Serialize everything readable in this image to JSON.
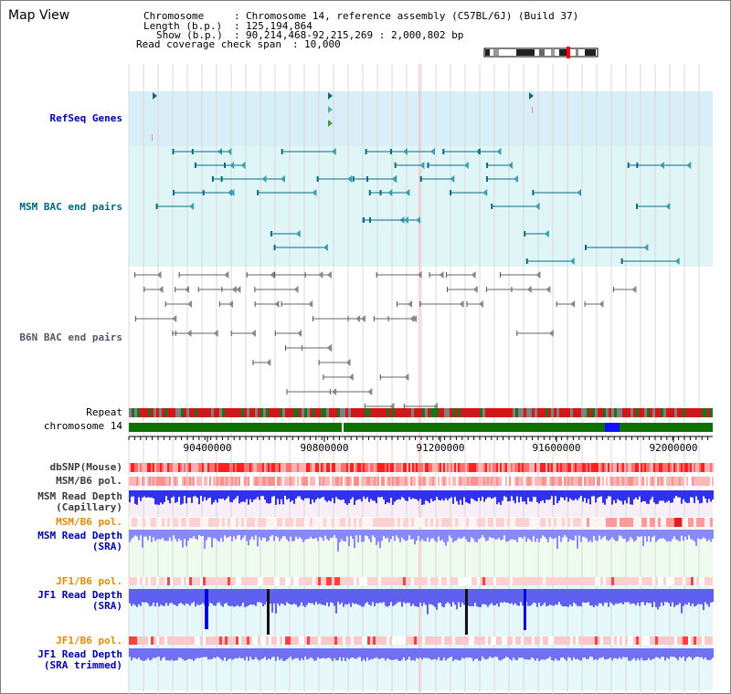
{
  "title": "Map View",
  "header": {
    "chromosome_label": "Chromosome",
    "chromosome_value": "Chromosome 14, reference assembly (C57BL/6J) (Build 37)",
    "length_label": "Length (b.p.)",
    "length_value": "125,194,864",
    "show_label": "Show (b.p.)",
    "show_value": "90,214,468-92,215,269 : 2,000,802 bp",
    "coverage_label": "Read coverage check span",
    "coverage_value": "10,000"
  },
  "tracks": {
    "refseq": "RefSeq Genes",
    "msm_bac": "MSM BAC end pairs",
    "b6n_bac": "B6N BAC end pairs",
    "repeat": "Repeat",
    "chromosome": "chromosome 14",
    "dbsnp": "dbSNP(Mouse)",
    "msm_b6_pol": "MSM/B6 pol.",
    "msm_depth_cap_1": "MSM Read Depth",
    "msm_depth_cap_2": "(Capillary)",
    "msm_b6_pol_2": "MSM/B6 pol.",
    "msm_depth_sra_1": "MSM Read Depth",
    "msm_depth_sra_2": "(SRA)",
    "jf1_b6_pol": "JF1/B6 pol.",
    "jf1_depth_sra_1": "JF1 Read Depth",
    "jf1_depth_sra_2": "(SRA)",
    "jf1_b6_pol_2": "JF1/B6 pol.",
    "jf1_depth_trim_1": "JF1 Read Depth",
    "jf1_depth_trim_2": "(SRA trimmed)"
  },
  "axis": {
    "ticks": [
      {
        "value": 90400000,
        "label": "90400000"
      },
      {
        "value": 90800000,
        "label": "90800000"
      },
      {
        "value": 91200000,
        "label": "91200000"
      },
      {
        "value": 91600000,
        "label": "91600000"
      },
      {
        "value": 92000000,
        "label": "92000000"
      }
    ],
    "range": [
      90214468,
      92215269
    ]
  },
  "colors": {
    "grid": "#d8d8d8",
    "refseq_bg": "#d8eef8",
    "msm_bac_bg": "#e0f6f6",
    "msm_bac_line": "#0a6a88",
    "b6n_line": "#666666",
    "chrom_green": "#0d7000",
    "chrom_blue": "#1010ff",
    "depth_blue": "#3030ee",
    "depth_light": "#8888ff",
    "pol_pink": "#ffc8c8",
    "pol_red": "#ff2020"
  }
}
